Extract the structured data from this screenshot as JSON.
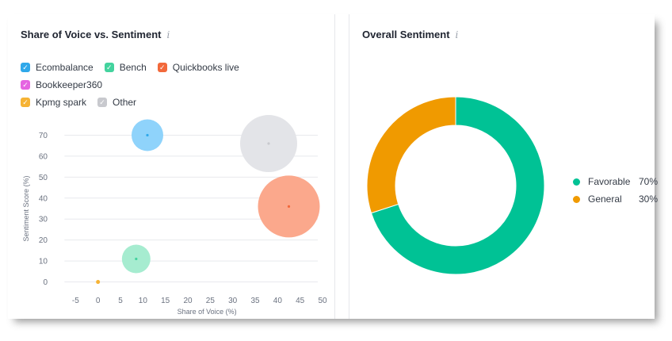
{
  "left_panel": {
    "title": "Share of Voice vs. Sentiment",
    "info_glyph": "i"
  },
  "right_panel": {
    "title": "Overall Sentiment",
    "info_glyph": "i"
  },
  "legend": [
    {
      "label": "Ecombalance",
      "color": "#2fa8ea"
    },
    {
      "label": "Bench",
      "color": "#43d39e"
    },
    {
      "label": "Quickbooks live",
      "color": "#f2693b"
    },
    {
      "label": "Bookkeeper360",
      "color": "#e565e1"
    },
    {
      "label": "Kpmg spark",
      "color": "#f6b335"
    },
    {
      "label": "Other",
      "color": "#c8c9ce"
    }
  ],
  "check_glyph": "✓",
  "chart_data": [
    {
      "type": "scatter",
      "title": "Share of Voice vs. Sentiment",
      "xlabel": "Share of Voice (%)",
      "ylabel": "Sentiment Score (%)",
      "xlim": [
        -10,
        50
      ],
      "ylim": [
        -10,
        80
      ],
      "x_ticks": [
        -5,
        0,
        5,
        10,
        15,
        20,
        25,
        30,
        35,
        40,
        45,
        50
      ],
      "y_ticks": [
        0,
        10,
        20,
        30,
        40,
        50,
        60,
        70
      ],
      "grid": "horizontal",
      "series": [
        {
          "name": "Ecombalance",
          "x": 11,
          "y": 70,
          "bubble_size": 40,
          "color": "#8fd3fb"
        },
        {
          "name": "Bench",
          "x": 8.5,
          "y": 11,
          "bubble_size": 36,
          "color": "#a6ecd0"
        },
        {
          "name": "Quickbooks live",
          "x": 42.5,
          "y": 36,
          "bubble_size": 78,
          "color": "#fba88c"
        },
        {
          "name": "Kpmg spark",
          "x": 0,
          "y": 0,
          "bubble_size": 5,
          "color": "#f6b335"
        },
        {
          "name": "Other",
          "x": 38,
          "y": 66,
          "bubble_size": 72,
          "color": "#e3e4e8"
        }
      ]
    },
    {
      "type": "pie",
      "title": "Overall Sentiment",
      "slices": [
        {
          "label": "Favorable",
          "value": 70,
          "value_label": "70%",
          "color": "#00c295"
        },
        {
          "label": "General",
          "value": 30,
          "value_label": "30%",
          "color": "#f09a00"
        }
      ]
    }
  ]
}
